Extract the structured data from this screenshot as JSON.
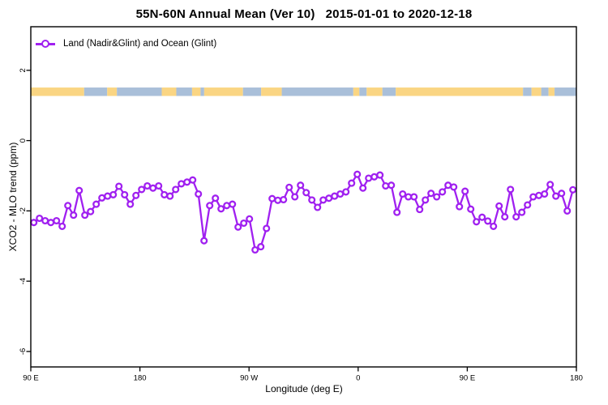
{
  "title": "55N-60N Annual Mean (Ver 10)   2015-01-01 to 2020-12-18",
  "legend": {
    "label": "Land (Nadir&Glint) and Ocean (Glint)"
  },
  "colors": {
    "series": "#A020F0",
    "land": "#FAD583",
    "ocean": "#A9BFD9",
    "axis": "#000000",
    "background": "#FFFFFF"
  },
  "chart_data": {
    "type": "line",
    "title": "55N-60N Annual Mean (Ver 10)   2015-01-01 to 2020-12-18",
    "xlabel": "Longitude (deg E)",
    "ylabel": "XCO2 - MLO trend (ppm)",
    "xlim_deg": [
      90,
      540
    ],
    "ylim": [
      -6.44,
      3.24
    ],
    "grid": false,
    "legend_position": "top-left-inside",
    "x_ticks": {
      "positions": [
        90,
        180,
        270,
        360,
        450,
        540
      ],
      "labels": [
        "90 E",
        "180",
        "90 W",
        "0",
        "90 E",
        "180"
      ]
    },
    "y_ticks": {
      "positions": [
        2,
        0,
        -2,
        -4,
        -6
      ],
      "labels": [
        "2",
        "0",
        "-2",
        "-4",
        "-6"
      ]
    },
    "series": [
      {
        "name": "Land (Nadir&Glint) and Ocean (Glint)",
        "marker": "open-circle",
        "x_start_deg": 92.5,
        "x_step_deg": 4.68,
        "values": [
          -2.33,
          -2.21,
          -2.28,
          -2.33,
          -2.28,
          -2.44,
          -1.85,
          -2.12,
          -1.42,
          -2.12,
          -2.02,
          -1.81,
          -1.63,
          -1.58,
          -1.54,
          -1.3,
          -1.54,
          -1.81,
          -1.56,
          -1.39,
          -1.29,
          -1.35,
          -1.29,
          -1.54,
          -1.58,
          -1.39,
          -1.23,
          -1.18,
          -1.12,
          -1.52,
          -2.85,
          -1.85,
          -1.64,
          -1.94,
          -1.85,
          -1.81,
          -2.46,
          -2.35,
          -2.23,
          -3.11,
          -3.02,
          -2.5,
          -1.65,
          -1.7,
          -1.68,
          -1.33,
          -1.6,
          -1.27,
          -1.48,
          -1.69,
          -1.9,
          -1.69,
          -1.64,
          -1.58,
          -1.52,
          -1.46,
          -1.21,
          -0.96,
          -1.35,
          -1.07,
          -1.03,
          -0.98,
          -1.29,
          -1.27,
          -2.04,
          -1.52,
          -1.6,
          -1.6,
          -1.96,
          -1.69,
          -1.5,
          -1.6,
          -1.46,
          -1.27,
          -1.32,
          -1.88,
          -1.44,
          -1.95,
          -2.31,
          -2.18,
          -2.29,
          -2.44,
          -1.86,
          -2.17,
          -1.39,
          -2.17,
          -2.04,
          -1.83,
          -1.6,
          -1.56,
          -1.52,
          -1.25,
          -1.58,
          -1.5,
          -2.0,
          -1.4
        ]
      }
    ],
    "map_band": {
      "description": "land/ocean strip for 55N-60N",
      "y_range": [
        1.27,
        1.51
      ],
      "segments": [
        [
          90,
          134,
          "land"
        ],
        [
          134,
          153,
          "ocean"
        ],
        [
          153,
          161,
          "land"
        ],
        [
          161,
          198,
          "ocean"
        ],
        [
          198,
          210,
          "land"
        ],
        [
          210,
          223,
          "ocean"
        ],
        [
          223,
          230,
          "land"
        ],
        [
          230,
          233,
          "ocean"
        ],
        [
          233,
          265,
          "land"
        ],
        [
          265,
          280,
          "ocean"
        ],
        [
          280,
          297,
          "land"
        ],
        [
          297,
          356,
          "ocean"
        ],
        [
          356,
          361,
          "land"
        ],
        [
          361,
          367,
          "ocean"
        ],
        [
          367,
          380,
          "land"
        ],
        [
          380,
          391,
          "ocean"
        ],
        [
          391,
          496,
          "land"
        ],
        [
          496,
          503,
          "ocean"
        ],
        [
          503,
          511,
          "land"
        ],
        [
          511,
          517,
          "ocean"
        ],
        [
          517,
          522,
          "land"
        ],
        [
          522,
          540,
          "ocean"
        ]
      ]
    }
  }
}
